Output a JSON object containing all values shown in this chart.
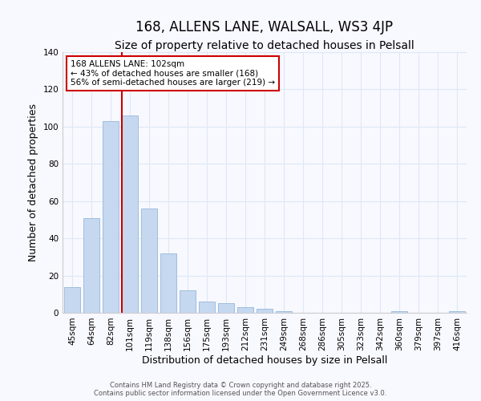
{
  "title": "168, ALLENS LANE, WALSALL, WS3 4JP",
  "subtitle": "Size of property relative to detached houses in Pelsall",
  "xlabel": "Distribution of detached houses by size in Pelsall",
  "ylabel": "Number of detached properties",
  "bar_labels": [
    "45sqm",
    "64sqm",
    "82sqm",
    "101sqm",
    "119sqm",
    "138sqm",
    "156sqm",
    "175sqm",
    "193sqm",
    "212sqm",
    "231sqm",
    "249sqm",
    "268sqm",
    "286sqm",
    "305sqm",
    "323sqm",
    "342sqm",
    "360sqm",
    "379sqm",
    "397sqm",
    "416sqm"
  ],
  "bar_values": [
    14,
    51,
    103,
    106,
    56,
    32,
    12,
    6,
    5,
    3,
    2,
    1,
    0,
    0,
    0,
    0,
    0,
    1,
    0,
    0,
    1
  ],
  "bar_color": "#c5d8f0",
  "bar_edge_color": "#a0bedd",
  "vline_x_idx": 3,
  "vline_color": "#cc0000",
  "annotation_text": "168 ALLENS LANE: 102sqm\n← 43% of detached houses are smaller (168)\n56% of semi-detached houses are larger (219) →",
  "annotation_box_color": "#ffffff",
  "annotation_box_edge": "#cc0000",
  "annotation_fontsize": 7.5,
  "ylim": [
    0,
    140
  ],
  "yticks": [
    0,
    20,
    40,
    60,
    80,
    100,
    120,
    140
  ],
  "title_fontsize": 12,
  "subtitle_fontsize": 10,
  "xlabel_fontsize": 9,
  "ylabel_fontsize": 9,
  "tick_fontsize": 7.5,
  "footer_line1": "Contains HM Land Registry data © Crown copyright and database right 2025.",
  "footer_line2": "Contains public sector information licensed under the Open Government Licence v3.0.",
  "background_color": "#f8f8ff",
  "grid_color": "#dde8f5",
  "grid_linewidth": 0.8
}
